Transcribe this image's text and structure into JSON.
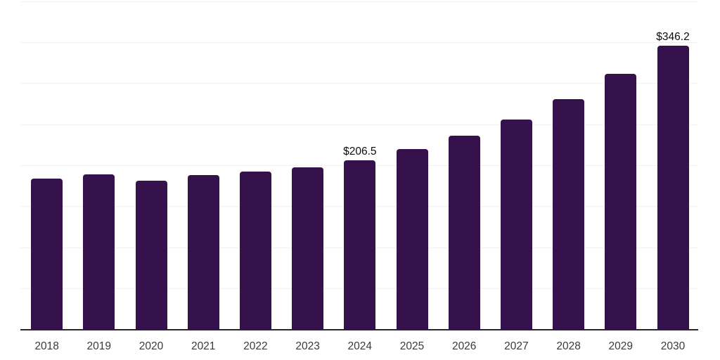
{
  "chart_data": {
    "type": "bar",
    "title": "",
    "xlabel": "",
    "ylabel": "",
    "categories": [
      "2018",
      "2019",
      "2020",
      "2021",
      "2022",
      "2023",
      "2024",
      "2025",
      "2026",
      "2027",
      "2028",
      "2029",
      "2030"
    ],
    "values": [
      184.1,
      189.3,
      181.6,
      188.4,
      192.3,
      197.9,
      206.5,
      220.1,
      236.4,
      256.1,
      281.0,
      311.8,
      346.2
    ],
    "annotations": [
      {
        "category": "2024",
        "text": "$206.5"
      },
      {
        "category": "2030",
        "text": "$346.2"
      }
    ],
    "ylim": [
      0,
      400
    ],
    "grid_step": 50,
    "grid": "horizontal-only",
    "legend_position": "none",
    "y_axis_labels_visible": false,
    "colors": {
      "bar": "#35124b",
      "grid": "#f1f1f4",
      "axis_line": "#26262b",
      "tick_label": "#3a3a3a",
      "data_label": "#0d0d0d",
      "background": "#ffffff"
    }
  }
}
